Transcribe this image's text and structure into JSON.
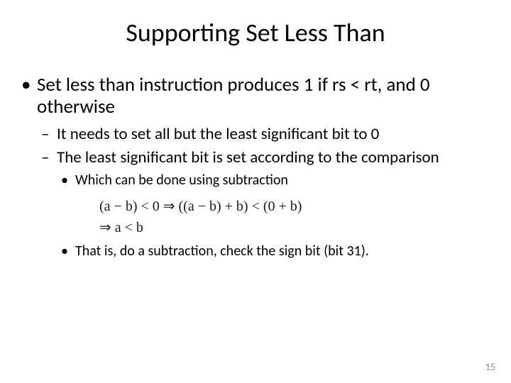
{
  "title": "Supporting Set Less Than",
  "bullets": {
    "l1_1": "Set less than instruction produces 1 if rs < rt, and 0 otherwise",
    "l2_1": "It needs to set all but the least significant bit to 0",
    "l2_2": "The least significant bit is set according to the comparison",
    "l3_1": "Which can be done using subtraction",
    "l3_2": "That is, do a subtraction, check the sign bit (bit 31)."
  },
  "formula": {
    "line1": "(a − b) < 0 ⇒ ((a − b) + b) < (0 + b)",
    "line2": "⇒ a < b"
  },
  "page_number": "15"
}
